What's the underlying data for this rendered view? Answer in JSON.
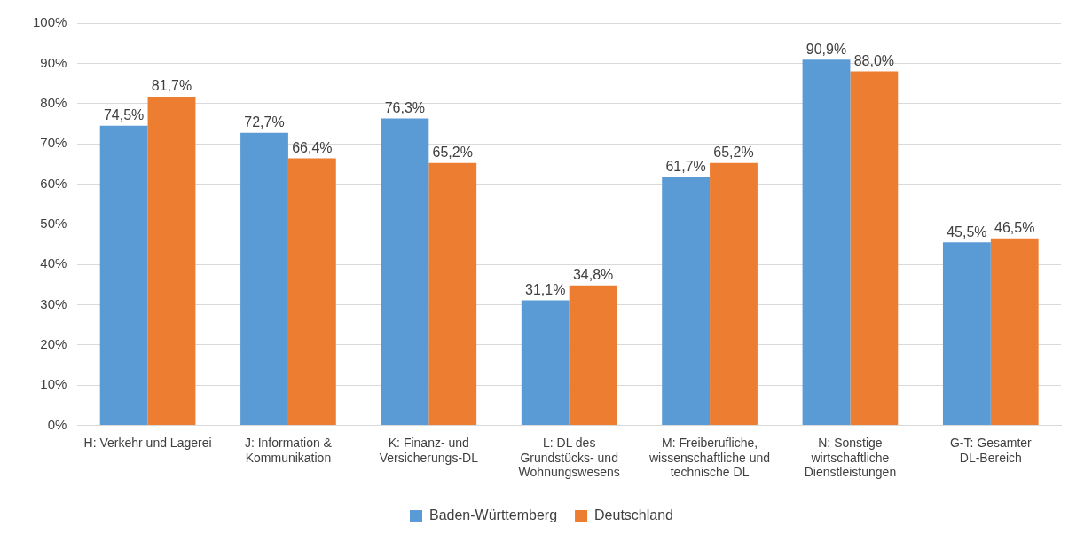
{
  "chart_data": {
    "type": "bar",
    "categories": [
      "H: Verkehr und Lagerei",
      "J: Information & Kommunikation",
      "K: Finanz- und Versicherungs-DL",
      "L: DL des Grundstücks- und Wohnungswesens",
      "M: Freiberufliche, wissenschaftliche und technische DL",
      "N: Sonstige wirtschaftliche Dienstleistungen",
      "G-T: Gesamter DL-Bereich"
    ],
    "series": [
      {
        "name": "Baden-Württemberg",
        "color": "#5b9bd5",
        "values": [
          74.5,
          72.7,
          76.3,
          31.1,
          61.7,
          90.9,
          45.5
        ],
        "value_labels": [
          "74,5%",
          "72,7%",
          "76,3%",
          "31,1%",
          "61,7%",
          "90,9%",
          "45,5%"
        ]
      },
      {
        "name": "Deutschland",
        "color": "#ed7d31",
        "values": [
          81.7,
          66.4,
          65.2,
          34.8,
          65.2,
          88.0,
          46.5
        ],
        "value_labels": [
          "81,7%",
          "66,4%",
          "65,2%",
          "34,8%",
          "65,2%",
          "88,0%",
          "46,5%"
        ]
      }
    ],
    "ylim": [
      0,
      100
    ],
    "yticks": [
      {
        "value": 0,
        "label": "0%"
      },
      {
        "value": 10,
        "label": "10%"
      },
      {
        "value": 20,
        "label": "20%"
      },
      {
        "value": 30,
        "label": "30%"
      },
      {
        "value": 40,
        "label": "40%"
      },
      {
        "value": 50,
        "label": "50%"
      },
      {
        "value": 60,
        "label": "60%"
      },
      {
        "value": 70,
        "label": "70%"
      },
      {
        "value": 80,
        "label": "80%"
      },
      {
        "value": 90,
        "label": "90%"
      },
      {
        "value": 100,
        "label": "100%"
      }
    ],
    "grid": "y",
    "legend": "bottom"
  }
}
